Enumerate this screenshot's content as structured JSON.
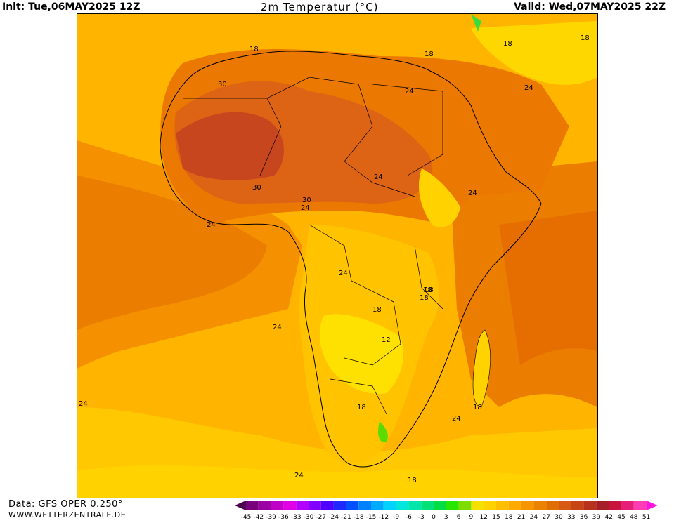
{
  "header": {
    "init": "Init: Tue,06MAY2025 12Z",
    "title": "2m Temperatur (°C)",
    "valid": "Valid: Wed,07MAY2025 22Z"
  },
  "footer": {
    "data_source": "Data: GFS OPER 0.250°",
    "website": "WWW.WETTERZENTRALE.DE"
  },
  "map": {
    "contour_labels": [
      "18",
      "18",
      "24",
      "30",
      "18",
      "24",
      "24",
      "24",
      "18",
      "30",
      "30",
      "24",
      "24",
      "24",
      "24",
      "18",
      "18",
      "18",
      "12",
      "24",
      "18",
      "18",
      "24",
      "24",
      "18",
      "18"
    ]
  },
  "legend": {
    "ticks": [
      "-45",
      "-42",
      "-39",
      "-36",
      "-33",
      "-30",
      "-27",
      "-24",
      "-21",
      "-18",
      "-15",
      "-12",
      "-9",
      "-6",
      "-3",
      "0",
      "3",
      "6",
      "9",
      "12",
      "15",
      "18",
      "21",
      "24",
      "27",
      "30",
      "33",
      "36",
      "39",
      "42",
      "45",
      "48",
      "51"
    ],
    "colors": [
      "#4b0050",
      "#78007d",
      "#9b00a5",
      "#c000c8",
      "#e100e6",
      "#b400ff",
      "#8200ff",
      "#5000ff",
      "#1e28ff",
      "#0050ff",
      "#0082ff",
      "#00aaff",
      "#00d2ff",
      "#00e6dc",
      "#00e6aa",
      "#00e178",
      "#00dc46",
      "#28e600",
      "#7ddc00",
      "#f5e100",
      "#ffd200",
      "#ffbe00",
      "#ffaa00",
      "#f59600",
      "#eb8200",
      "#e16e00",
      "#d75a14",
      "#c84614",
      "#b9321e",
      "#a51e28",
      "#c8143c",
      "#e61e78",
      "#ff3cb4",
      "#ff14dc"
    ]
  }
}
